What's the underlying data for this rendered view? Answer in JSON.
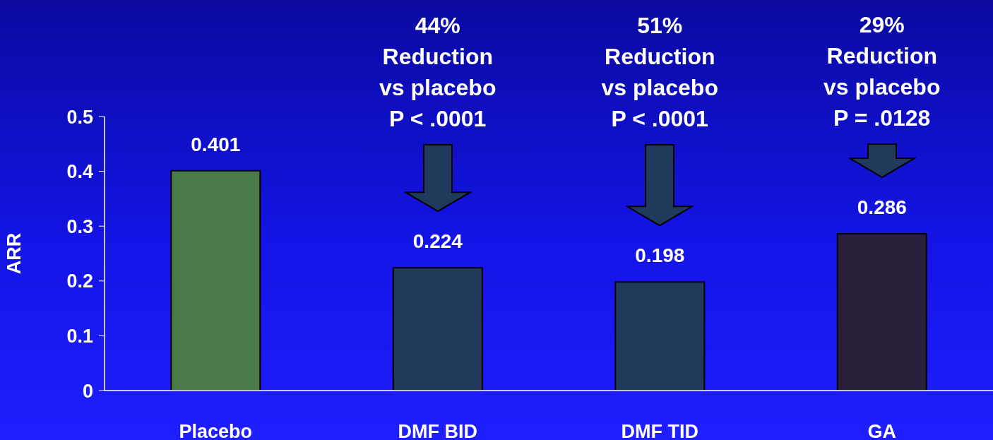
{
  "chart_data": {
    "type": "bar",
    "ylabel": "ARR",
    "categories": [
      "Placebo",
      "DMF BID",
      "DMF TID",
      "GA"
    ],
    "values": [
      0.401,
      0.224,
      0.198,
      0.286
    ],
    "colors": [
      "#4a7a4a",
      "#1f3a5a",
      "#1f3a5a",
      "#2a1f3a"
    ],
    "ylim": [
      0,
      0.5
    ],
    "yticks": [
      0,
      0.1,
      0.2,
      0.3,
      0.4,
      0.5
    ],
    "grid": false,
    "data_labels": true,
    "annotations": [
      "44%\nReduction\nvs placebo\nP < .0001",
      "51%\nReduction\nvs placebo\nP < .0001",
      "29%\nReduction\nvs placebo\nP = .0128"
    ]
  }
}
